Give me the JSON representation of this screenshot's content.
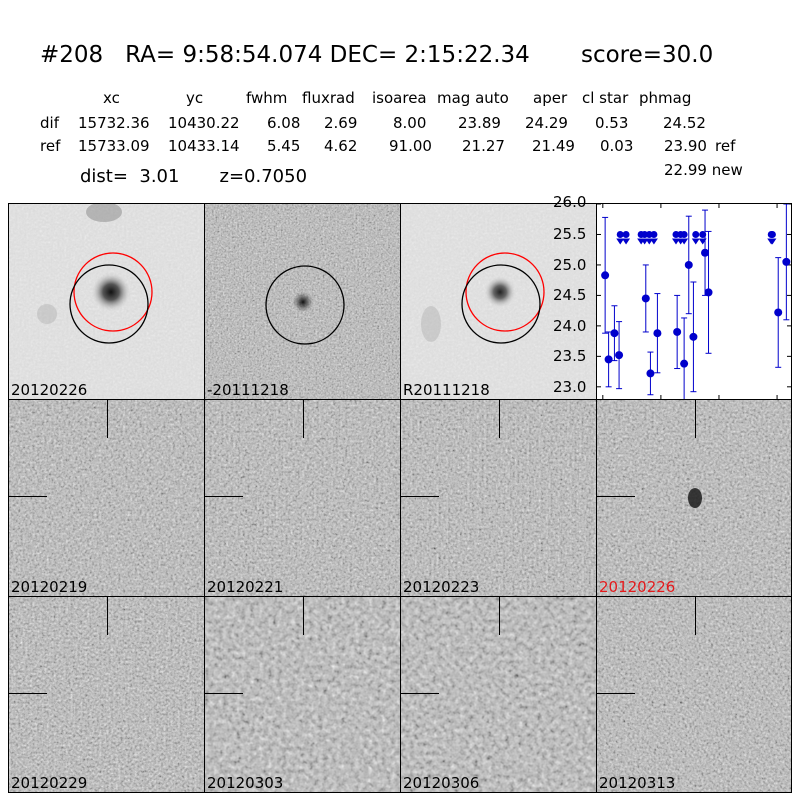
{
  "header": {
    "title": "#208   RA= 9:58:54.074 DEC= 2:15:22.34       score=30.0",
    "columns": [
      "xc",
      "yc",
      "fwhm",
      "fluxrad",
      "isoarea",
      "mag auto",
      "aper",
      "cl star",
      "phmag"
    ],
    "rows": [
      {
        "label": "dif",
        "values": [
          "15732.36",
          "10430.22",
          "6.08",
          "2.69",
          "8.00",
          "23.89",
          "24.29",
          "0.53",
          "24.52"
        ],
        "suffix": ""
      },
      {
        "label": "ref",
        "values": [
          "15733.09",
          "10433.14",
          "5.45",
          "4.62",
          "91.00",
          "21.27",
          "21.49",
          "0.03",
          "23.90"
        ],
        "suffix": "ref"
      }
    ],
    "dist_line": "dist=  3.01       z=0.7050",
    "new_mag": "22.99 new"
  },
  "panels_top": [
    {
      "label": "20120226",
      "type": "new",
      "circles": [
        "red",
        "black"
      ]
    },
    {
      "label": "-20111218",
      "type": "diff",
      "circles": [
        "black"
      ]
    },
    {
      "label": "R20111218",
      "type": "ref",
      "circles": [
        "red",
        "black"
      ]
    }
  ],
  "panels_grid": [
    {
      "label": "20120219",
      "highlight": false
    },
    {
      "label": "20120221",
      "highlight": false
    },
    {
      "label": "20120223",
      "highlight": false
    },
    {
      "label": "20120226",
      "highlight": true
    },
    {
      "label": "20120229",
      "highlight": false
    },
    {
      "label": "20120303",
      "highlight": false
    },
    {
      "label": "20120306",
      "highlight": false
    },
    {
      "label": "20120313",
      "highlight": false
    }
  ],
  "colors": {
    "series": "#0000cc",
    "circle_red": "#ff0000",
    "label_highlight": "#e41a1c"
  },
  "chart_data": {
    "type": "scatter",
    "title": "",
    "xlabel": "",
    "ylabel": "",
    "xlim": [
      -5,
      162
    ],
    "ylim": [
      26.0,
      22.8
    ],
    "y_inverted": true,
    "xticks": [
      "0",
      "50",
      "100",
      "150"
    ],
    "yticks": [
      "23.0",
      "23.5",
      "24.0",
      "24.5",
      "25.0",
      "25.5",
      "26.0"
    ],
    "detections": [
      {
        "x": 2,
        "y": 24.83,
        "err": 0.95
      },
      {
        "x": 5,
        "y": 23.45,
        "err": 0.45
      },
      {
        "x": 10,
        "y": 23.88,
        "err": 0.45
      },
      {
        "x": 14,
        "y": 23.52,
        "err": 0.55
      },
      {
        "x": 37,
        "y": 24.45,
        "err": 0.55
      },
      {
        "x": 41,
        "y": 23.22,
        "err": 0.35
      },
      {
        "x": 47,
        "y": 23.88,
        "err": 0.65
      },
      {
        "x": 64,
        "y": 23.9,
        "err": 0.6
      },
      {
        "x": 70,
        "y": 23.38,
        "err": 0.75
      },
      {
        "x": 74,
        "y": 25.0,
        "err": 0.8
      },
      {
        "x": 78,
        "y": 23.82,
        "err": 0.9
      },
      {
        "x": 88,
        "y": 25.2,
        "err": 0.7
      },
      {
        "x": 91,
        "y": 24.55,
        "err": 1.0
      },
      {
        "x": 151,
        "y": 24.22,
        "err": 0.9
      },
      {
        "x": 158,
        "y": 25.05,
        "err": 0.95
      }
    ],
    "upper_limits": [
      {
        "x": 15,
        "y": 25.5
      },
      {
        "x": 20,
        "y": 25.5
      },
      {
        "x": 33,
        "y": 25.5
      },
      {
        "x": 36,
        "y": 25.5
      },
      {
        "x": 40,
        "y": 25.5
      },
      {
        "x": 44,
        "y": 25.5
      },
      {
        "x": 63,
        "y": 25.5
      },
      {
        "x": 67,
        "y": 25.5
      },
      {
        "x": 70,
        "y": 25.5
      },
      {
        "x": 80,
        "y": 25.5
      },
      {
        "x": 86,
        "y": 25.5
      },
      {
        "x": 145,
        "y": 25.5
      },
      {
        "x": 146,
        "y": 25.5
      }
    ]
  }
}
